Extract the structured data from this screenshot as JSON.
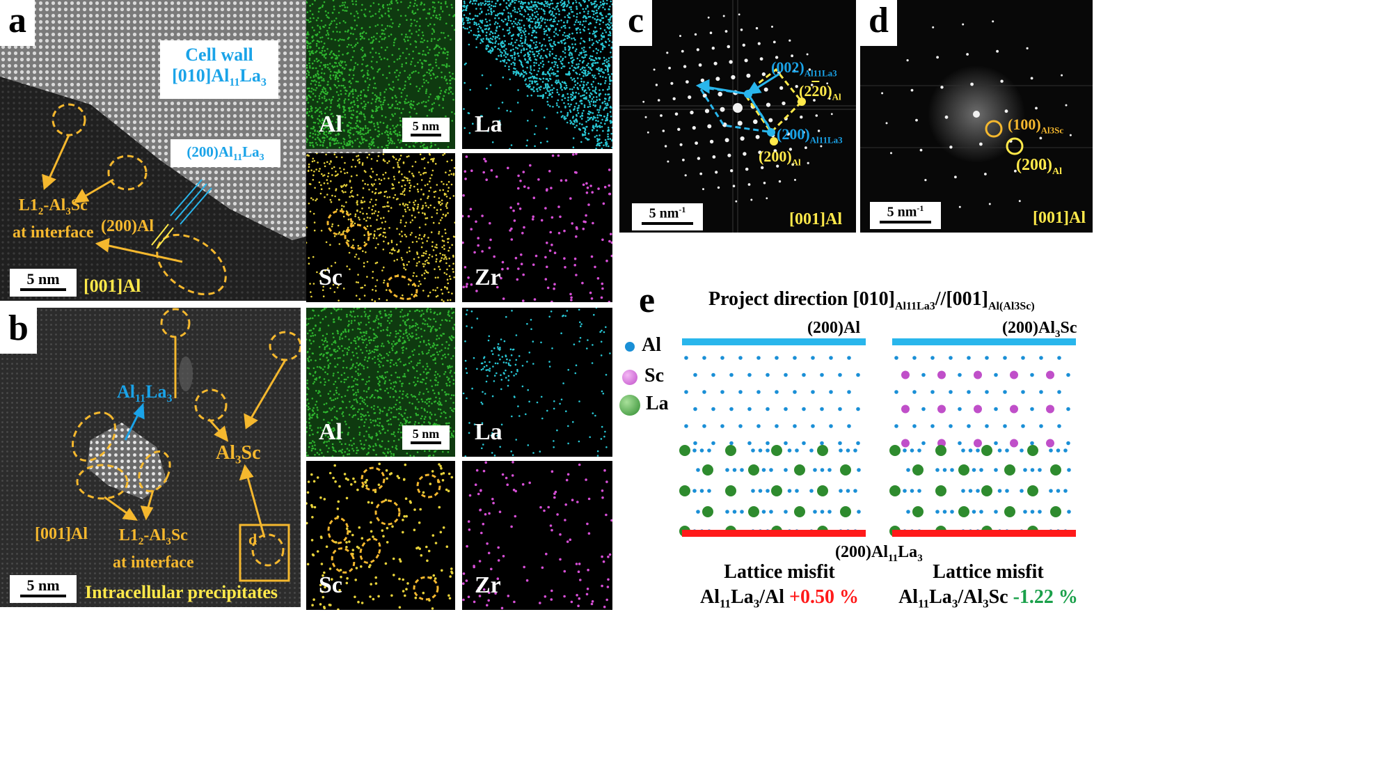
{
  "panel_a": {
    "tag": "a",
    "cell_wall_line1": "Cell wall",
    "cell_wall_line2_prefix": "[010]Al",
    "cell_wall_sub1": "11",
    "cell_wall_mid": "La",
    "cell_wall_sub2": "3",
    "plane_label_prefix": "(200)Al",
    "plane_sub1": "11",
    "plane_mid": "La",
    "plane_sub2": "3",
    "l12_line1_prefix": "L1",
    "l12_sub1": "2",
    "l12_line1_mid": "-Al",
    "l12_sub2": "3",
    "l12_line1_suffix": "Sc",
    "l12_line2": "at interface",
    "al200": "(200)Al",
    "scale": "5 nm",
    "zone": "[001]Al"
  },
  "eds_top": {
    "al": "Al",
    "la": "La",
    "sc": "Sc",
    "zr": "Zr",
    "scale": "5 nm"
  },
  "eds_bottom": {
    "al": "Al",
    "la": "La",
    "sc": "Sc",
    "zr": "Zr",
    "scale": "5 nm"
  },
  "panel_b": {
    "tag": "b",
    "al11la3_prefix": "Al",
    "al11la3_sub1": "11",
    "al11la3_mid": "La",
    "al11la3_sub2": "3",
    "al3sc_prefix": "Al",
    "al3sc_sub": "3",
    "al3sc_suffix": "Sc",
    "zone": "[001]Al",
    "l12_line1_prefix": "L1",
    "l12_sub1": "2",
    "l12_line1_mid": "-Al",
    "l12_sub2": "3",
    "l12_line1_suffix": "Sc",
    "l12_line2": "at interface",
    "d_marker": "d",
    "scale": "5 nm",
    "intracellular": "Intracellular precipitates"
  },
  "panel_c": {
    "tag": "c",
    "spot_002_prefix": "(002)",
    "spot_002_sub": "Al11La3",
    "spot_220": "(2",
    "spot_220_bar": "2",
    "spot_220_end": "0)",
    "spot_220_sub": "Al",
    "spot_200la_prefix": "(200)",
    "spot_200la_sub": "Al11La3",
    "spot_200al_prefix": "(200)",
    "spot_200al_sub": "Al",
    "scale": "5 nm",
    "scale_sup": "-1",
    "zone": "[001]Al"
  },
  "panel_d": {
    "tag": "d",
    "spot_100_prefix": "(100)",
    "spot_100_sub": "Al3Sc",
    "spot_200_prefix": "(200)",
    "spot_200_sub": "Al",
    "scale": "5 nm",
    "scale_sup": "-1",
    "zone": "[001]Al"
  },
  "panel_e": {
    "tag": "e",
    "title_prefix": "Project direction [010]",
    "title_sub1": "Al11La3",
    "title_mid": "//[001]",
    "title_sub2": "Al(Al3Sc)",
    "left_top_plane": "(200)Al",
    "right_top_plane_prefix": "(200)Al",
    "right_top_plane_sub": "3",
    "right_top_plane_suffix": "Sc",
    "bottom_plane_prefix": "(200)Al",
    "bottom_plane_sub1": "11",
    "bottom_plane_mid": "La",
    "bottom_plane_sub2": "3",
    "legend": [
      {
        "label": "Al",
        "color": "#1a8fd6"
      },
      {
        "label": "Sc",
        "color": "#c04fc9"
      },
      {
        "label": "La",
        "color": "#2e8b2e"
      }
    ],
    "misfit_left_title": "Lattice misfit",
    "misfit_left_prefix": "Al",
    "misfit_left_sub1": "11",
    "misfit_left_mid": "La",
    "misfit_left_sub2": "3",
    "misfit_left_suffix": "/Al",
    "misfit_left_value": "+0.50 %",
    "misfit_left_color": "#ff1a1a",
    "misfit_right_title": "Lattice misfit",
    "misfit_right_prefix": "Al",
    "misfit_right_sub1": "11",
    "misfit_right_mid": "La",
    "misfit_right_sub2": "3",
    "misfit_right_suffix": "/Al",
    "misfit_right_sub3": "3",
    "misfit_right_suffix2": "Sc",
    "misfit_right_value": "-1.22 %",
    "misfit_right_color": "#1aa04a"
  },
  "colors": {
    "orange": "#f5b82e",
    "cyan": "#1aa3e8",
    "yellow": "#ffe94a",
    "red": "#ff1a1a",
    "eds_al": "#2fb52f",
    "eds_la": "#29c8d6",
    "eds_sc": "#e7d23a",
    "eds_zr": "#d64fd6"
  }
}
